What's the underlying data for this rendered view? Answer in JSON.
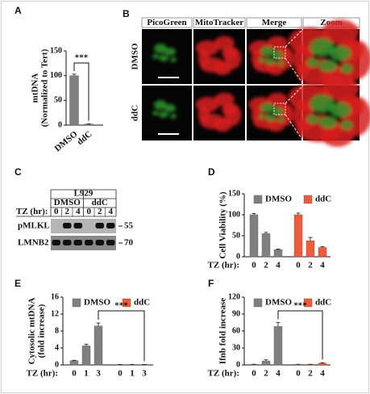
{
  "microscopy": {
    "panel": "B",
    "columns": [
      "PicoGreen",
      "MitoTracker",
      "Merge",
      "Zoom"
    ],
    "rows": [
      "DMSO",
      "ddC"
    ]
  },
  "blot": {
    "panel": "C",
    "cell_line": "L929",
    "groups": [
      "DMSO",
      "ddC"
    ],
    "xlabel": "TZ (hr):",
    "times": [
      "0",
      "2",
      "4"
    ],
    "proteins": [
      {
        "name": "pMLKL",
        "marker": "55"
      },
      {
        "name": "LMNB2",
        "marker": "70"
      }
    ]
  },
  "chart_data": [
    {
      "type": "bar",
      "panel": "A",
      "ylabel": [
        "mtDNA",
        "(Normalized to Tert)"
      ],
      "categories": [
        "DMSO",
        "ddC"
      ],
      "values": [
        100,
        2
      ],
      "errors": [
        3,
        0.5
      ],
      "color": "#808080",
      "ylim": [
        0,
        150
      ],
      "yticks": [
        0,
        50,
        100,
        150
      ],
      "annotation": "***"
    },
    {
      "type": "grouped_bar",
      "panel": "D",
      "ylabel": [
        "Cell Viability (%)"
      ],
      "xlabel": "TZ (hr):",
      "categories": [
        "0",
        "2",
        "4"
      ],
      "series": [
        {
          "name": "DMSO",
          "color": "#808080",
          "values": [
            100,
            55,
            17
          ],
          "errors": [
            3,
            3,
            1.5
          ]
        },
        {
          "name": "ddC",
          "color": "#f15a3a",
          "values": [
            100,
            38,
            22
          ],
          "errors": [
            4,
            8,
            2
          ]
        }
      ],
      "ylim": [
        0,
        150
      ],
      "yticks": [
        0,
        50,
        100,
        150
      ]
    },
    {
      "type": "grouped_bar",
      "panel": "E",
      "ylabel": [
        "Cytosolic mtDNA",
        "(fold increase)"
      ],
      "xlabel": "TZ (hr):",
      "categories": [
        "0",
        "1",
        "3"
      ],
      "series": [
        {
          "name": "DMSO",
          "color": "#808080",
          "values": [
            1,
            4.5,
            9.2
          ],
          "errors": [
            0.1,
            0.4,
            0.7
          ]
        },
        {
          "name": "ddC",
          "color": "#f15a3a",
          "values": [
            0.1,
            0.1,
            0.1
          ],
          "errors": [
            0.02,
            0.02,
            0.02
          ]
        }
      ],
      "ylim": [
        0,
        16
      ],
      "yticks": [
        0,
        4,
        8,
        12,
        16
      ],
      "annotation": "***"
    },
    {
      "type": "grouped_bar",
      "panel": "F",
      "ylabel": [
        "Ifnb fold increase"
      ],
      "xlabel": "TZ (hr):",
      "categories": [
        "0",
        "2",
        "4"
      ],
      "series": [
        {
          "name": "DMSO",
          "color": "#808080",
          "values": [
            1,
            7,
            68
          ],
          "errors": [
            0.3,
            2,
            7
          ]
        },
        {
          "name": "ddC",
          "color": "#f15a3a",
          "values": [
            1,
            1,
            3
          ],
          "errors": [
            0.2,
            0.2,
            1
          ]
        }
      ],
      "ylim": [
        0,
        120
      ],
      "yticks": [
        0,
        30,
        60,
        90,
        120
      ],
      "annotation": "***"
    }
  ]
}
